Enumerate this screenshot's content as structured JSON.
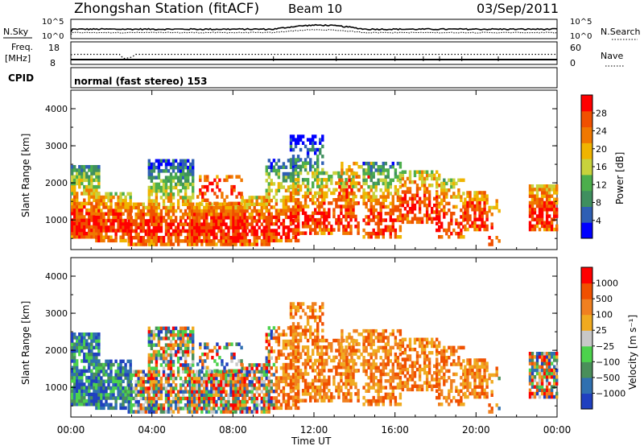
{
  "header": {
    "station": "Zhongshan Station (fitACF)",
    "beam": "Beam 10",
    "date": "03/Sep/2011"
  },
  "noise_panel": {
    "left_label": "N.Sky",
    "right_label": "N.Search",
    "left_ticks": [
      "10^5",
      "10^0"
    ],
    "right_ticks": [
      "10^5",
      "10^0"
    ]
  },
  "freq_panel": {
    "left_label_top": "Freq.",
    "left_label_unit": "[MHz]",
    "left_ticks": [
      "18",
      "8"
    ],
    "right_label": "Nave",
    "right_ticks": [
      "60",
      "0"
    ]
  },
  "cpid_panel": {
    "label": "CPID",
    "text": "normal (fast stereo) 153"
  },
  "colors": {
    "power_scale": [
      "#0000ff",
      "#2f5fb4",
      "#3f8f5f",
      "#4cae4c",
      "#c8d23c",
      "#f0b400",
      "#f07800",
      "#f05000",
      "#ff0000"
    ],
    "velocity_scale": [
      "#2040c0",
      "#3070b0",
      "#4a8f5a",
      "#4cd24c",
      "#c8c8c8",
      "#f0aa20",
      "#f08020",
      "#f05000",
      "#ff0000"
    ]
  },
  "chart_data": [
    {
      "type": "heatmap",
      "name": "power",
      "ylabel": "Slant Range [km]",
      "yticks": [
        "4000",
        "3000",
        "2000",
        "1000"
      ],
      "ylim": [
        200,
        4500
      ],
      "xlim": [
        0,
        24
      ],
      "colorbar_label": "Power [dB]",
      "colorbar_ticks": [
        "28",
        "24",
        "20",
        "16",
        "12",
        "8",
        "4"
      ],
      "colorbar_range": [
        0,
        32
      ]
    },
    {
      "type": "heatmap",
      "name": "velocity",
      "ylabel": "Slant Range [km]",
      "yticks": [
        "4000",
        "3000",
        "2000",
        "1000"
      ],
      "ylim": [
        200,
        4500
      ],
      "xlim": [
        0,
        24
      ],
      "colorbar_label": "Velocity [m s⁻¹]",
      "colorbar_ticks": [
        "1000",
        "500",
        "100",
        "25",
        "−25",
        "−100",
        "−500",
        "−1000"
      ]
    }
  ],
  "x_axis": {
    "ticks": [
      "00:00",
      "04:00",
      "08:00",
      "12:00",
      "16:00",
      "20:00",
      "00:00"
    ],
    "title": "Time UT"
  }
}
